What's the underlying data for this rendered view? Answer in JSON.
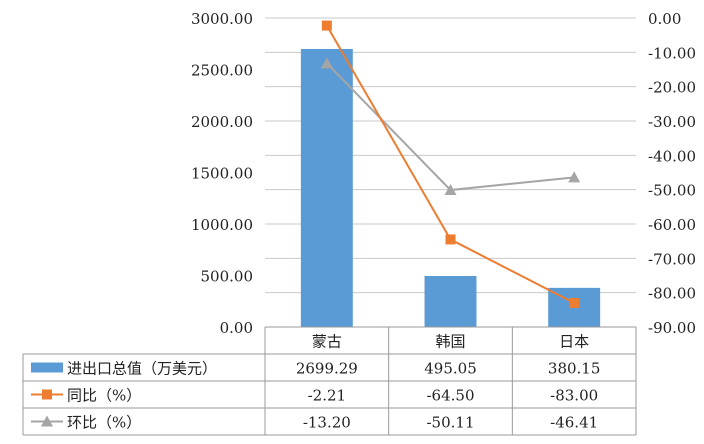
{
  "chart_data": {
    "type": "bar",
    "categories": [
      "蒙古",
      "韩国",
      "日本"
    ],
    "series": [
      {
        "name": "进出口总值（万美元）",
        "type": "bar",
        "axis": "left",
        "color": "#5b9bd5",
        "marker": "rect",
        "values": [
          2699.29,
          495.05,
          380.15
        ],
        "labels": [
          "2699.29",
          "495.05",
          "380.15"
        ]
      },
      {
        "name": "同比（%）",
        "type": "line",
        "axis": "right",
        "color": "#ed7d31",
        "marker": "square",
        "values": [
          -2.21,
          -64.5,
          -83.0
        ],
        "labels": [
          "-2.21",
          "-64.50",
          "-83.00"
        ]
      },
      {
        "name": "环比（%）",
        "type": "line",
        "axis": "right",
        "color": "#a5a5a5",
        "marker": "triangle",
        "values": [
          -13.2,
          -50.11,
          -46.41
        ],
        "labels": [
          "-13.20",
          "-50.11",
          "-46.41"
        ]
      }
    ],
    "y_left": {
      "ylim": [
        0,
        3000
      ],
      "ticks": [
        "0.00",
        "500.00",
        "1000.00",
        "1500.00",
        "2000.00",
        "2500.00",
        "3000.00"
      ]
    },
    "y_right": {
      "ylim": [
        -90,
        0
      ],
      "ticks": [
        "-90.00",
        "-80.00",
        "-70.00",
        "-60.00",
        "-50.00",
        "-40.00",
        "-30.00",
        "-20.00",
        "-10.00",
        "0.00"
      ]
    },
    "grid": true,
    "legend": "data-table"
  }
}
